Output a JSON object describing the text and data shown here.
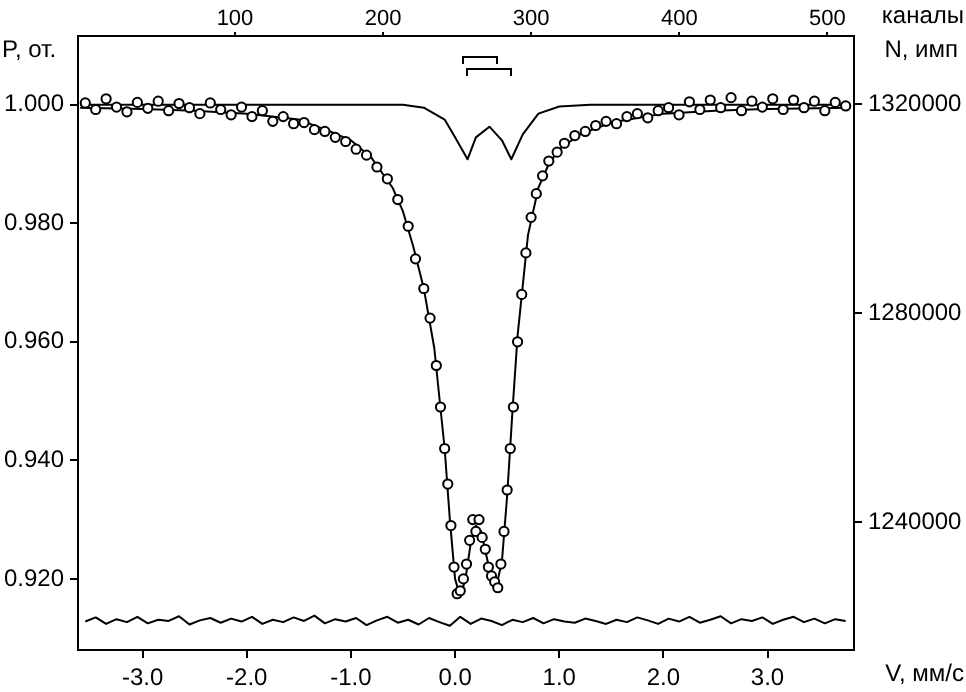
{
  "chart_data": {
    "type": "scatter",
    "xlabel": "V, мм/с",
    "ylabel": "P, от.",
    "x2label": "каналы",
    "y2label": "N, имп",
    "xlim": [
      -3.62,
      3.83
    ],
    "xticks": [
      {
        "value": -3,
        "label": "-3.0"
      },
      {
        "value": -2,
        "label": "-2.0"
      },
      {
        "value": -1,
        "label": "-1.0"
      },
      {
        "value": 0,
        "label": "0.0"
      },
      {
        "value": 1,
        "label": "1.0"
      },
      {
        "value": 2,
        "label": "2.0"
      },
      {
        "value": 3,
        "label": "3.0"
      }
    ],
    "x2lim": [
      -6,
      518
    ],
    "x2ticks": [
      100,
      200,
      300,
      400,
      500
    ],
    "ylim": [
      0.908,
      1.0116
    ],
    "yticks": [
      {
        "value": 0.92,
        "label": "0.920"
      },
      {
        "value": 0.94,
        "label": "0.940"
      },
      {
        "value": 0.96,
        "label": "0.960"
      },
      {
        "value": 0.98,
        "label": "0.980"
      },
      {
        "value": 1,
        "label": "1.000"
      }
    ],
    "y2lim": [
      1215500,
      1333000
    ],
    "y2ticks": [
      1240000,
      1280000,
      1320000
    ],
    "grid": false,
    "legend": false,
    "series": [
      {
        "marker": "circle",
        "color": "#000000",
        "x": [
          -3.55,
          -3.45,
          -3.35,
          -3.25,
          -3.15,
          -3.05,
          -2.95,
          -2.85,
          -2.75,
          -2.65,
          -2.55,
          -2.45,
          -2.35,
          -2.25,
          -2.15,
          -2.05,
          -1.95,
          -1.85,
          -1.75,
          -1.65,
          -1.55,
          -1.45,
          -1.35,
          -1.25,
          -1.15,
          -1.05,
          -0.95,
          -0.85,
          -0.75,
          -0.65,
          -0.55,
          -0.45,
          -0.38,
          -0.3,
          -0.24,
          -0.18,
          -0.14,
          -0.1,
          -0.07,
          -0.04,
          -0.01,
          0.02,
          0.05,
          0.08,
          0.11,
          0.14,
          0.17,
          0.2,
          0.23,
          0.26,
          0.29,
          0.32,
          0.35,
          0.38,
          0.41,
          0.44,
          0.47,
          0.5,
          0.53,
          0.56,
          0.6,
          0.64,
          0.68,
          0.73,
          0.78,
          0.84,
          0.9,
          0.98,
          1.05,
          1.15,
          1.25,
          1.35,
          1.45,
          1.55,
          1.65,
          1.75,
          1.85,
          1.95,
          2.05,
          2.15,
          2.25,
          2.35,
          2.45,
          2.55,
          2.65,
          2.75,
          2.85,
          2.95,
          3.05,
          3.15,
          3.25,
          3.35,
          3.45,
          3.55,
          3.65,
          3.75
        ],
        "values": [
          1.0003,
          0.9992,
          1.001,
          0.9996,
          0.9988,
          1.0004,
          0.9994,
          1.0006,
          0.999,
          1.0002,
          0.9995,
          0.9985,
          1.0003,
          0.9992,
          0.9983,
          0.9996,
          0.998,
          0.999,
          0.9972,
          0.998,
          0.9968,
          0.997,
          0.9958,
          0.9955,
          0.9945,
          0.9938,
          0.9925,
          0.9915,
          0.9895,
          0.9875,
          0.984,
          0.9795,
          0.974,
          0.969,
          0.964,
          0.956,
          0.949,
          0.942,
          0.936,
          0.929,
          0.922,
          0.9175,
          0.918,
          0.92,
          0.9225,
          0.9265,
          0.93,
          0.928,
          0.93,
          0.927,
          0.925,
          0.922,
          0.9205,
          0.9195,
          0.9185,
          0.9225,
          0.928,
          0.935,
          0.942,
          0.949,
          0.96,
          0.968,
          0.975,
          0.981,
          0.985,
          0.988,
          0.9905,
          0.992,
          0.9935,
          0.9948,
          0.9955,
          0.9965,
          0.9972,
          0.9968,
          0.998,
          0.9985,
          0.9978,
          0.999,
          0.9995,
          0.9983,
          1.0005,
          0.9992,
          1.0008,
          0.9995,
          1.0012,
          0.999,
          1.0006,
          0.9996,
          1.001,
          0.9992,
          1.0008,
          0.9995,
          1.0006,
          0.999,
          1.0004,
          0.9998
        ]
      },
      {
        "type": "line",
        "marker": "none",
        "color": "#000000",
        "x": [
          -3.6,
          -3,
          -2.5,
          -2,
          -1.5,
          -1.2,
          -1,
          -0.8,
          -0.6,
          -0.5,
          -0.4,
          -0.3,
          -0.2,
          -0.1,
          -0.05,
          0,
          0.05,
          0.1,
          0.15,
          0.2,
          0.25,
          0.3,
          0.35,
          0.4,
          0.45,
          0.5,
          0.55,
          0.6,
          0.7,
          0.8,
          0.9,
          1,
          1.2,
          1.5,
          2,
          2.5,
          3,
          3.8
        ],
        "values": [
          0.9995,
          0.9993,
          0.999,
          0.9985,
          0.9975,
          0.9955,
          0.994,
          0.991,
          0.986,
          0.982,
          0.976,
          0.969,
          0.959,
          0.942,
          0.93,
          0.92,
          0.917,
          0.92,
          0.926,
          0.929,
          0.928,
          0.924,
          0.92,
          0.919,
          0.923,
          0.934,
          0.948,
          0.961,
          0.978,
          0.986,
          0.99,
          0.9925,
          0.995,
          0.997,
          0.9985,
          0.999,
          0.9993,
          0.9995
        ]
      },
      {
        "type": "line",
        "marker": "none",
        "color": "#000000",
        "x": [
          -3.6,
          -0.5,
          -0.3,
          -0.1,
          0,
          0.12,
          0.2,
          0.33,
          0.45,
          0.54,
          0.65,
          0.8,
          1,
          1.3,
          3.8
        ],
        "values": [
          1,
          1,
          0.9995,
          0.9975,
          0.9945,
          0.9908,
          0.9945,
          0.9963,
          0.994,
          0.9908,
          0.995,
          0.9985,
          0.9997,
          1,
          1
        ]
      },
      {
        "type": "line",
        "marker": "none",
        "color": "#000000",
        "x": [
          -3.55,
          -3.45,
          -3.35,
          -3.25,
          -3.15,
          -3.05,
          -2.95,
          -2.85,
          -2.75,
          -2.65,
          -2.55,
          -2.45,
          -2.35,
          -2.25,
          -2.15,
          -2.05,
          -1.95,
          -1.85,
          -1.75,
          -1.65,
          -1.55,
          -1.45,
          -1.35,
          -1.25,
          -1.15,
          -1.05,
          -0.95,
          -0.85,
          -0.75,
          -0.65,
          -0.55,
          -0.45,
          -0.35,
          -0.25,
          -0.15,
          -0.05,
          0.05,
          0.15,
          0.25,
          0.35,
          0.45,
          0.55,
          0.65,
          0.75,
          0.85,
          0.95,
          1.05,
          1.15,
          1.25,
          1.35,
          1.45,
          1.55,
          1.65,
          1.75,
          1.85,
          1.95,
          2.05,
          2.15,
          2.25,
          2.35,
          2.45,
          2.55,
          2.65,
          2.75,
          2.85,
          2.95,
          3.05,
          3.15,
          3.25,
          3.35,
          3.45,
          3.55,
          3.65,
          3.75
        ],
        "values": [
          0.9128,
          0.9135,
          0.9124,
          0.9132,
          0.9127,
          0.9136,
          0.9125,
          0.9131,
          0.9129,
          0.9137,
          0.9123,
          0.913,
          0.9134,
          0.9126,
          0.9133,
          0.9128,
          0.9136,
          0.9124,
          0.9131,
          0.9127,
          0.9135,
          0.9129,
          0.9138,
          0.9125,
          0.9132,
          0.9128,
          0.9134,
          0.9122,
          0.913,
          0.9136,
          0.9126,
          0.9131,
          0.9123,
          0.9134,
          0.9127,
          0.9121,
          0.9136,
          0.9124,
          0.9133,
          0.9129,
          0.9122,
          0.9131,
          0.9127,
          0.9134,
          0.9125,
          0.9132,
          0.9128,
          0.9126,
          0.9133,
          0.9129,
          0.9124,
          0.9131,
          0.9127,
          0.9135,
          0.913,
          0.9124,
          0.9133,
          0.9128,
          0.9136,
          0.9126,
          0.9131,
          0.9137,
          0.9125,
          0.9132,
          0.9129,
          0.9135,
          0.9124,
          0.9131,
          0.9136,
          0.9127,
          0.9133,
          0.9125,
          0.9132,
          0.9129
        ]
      }
    ]
  }
}
